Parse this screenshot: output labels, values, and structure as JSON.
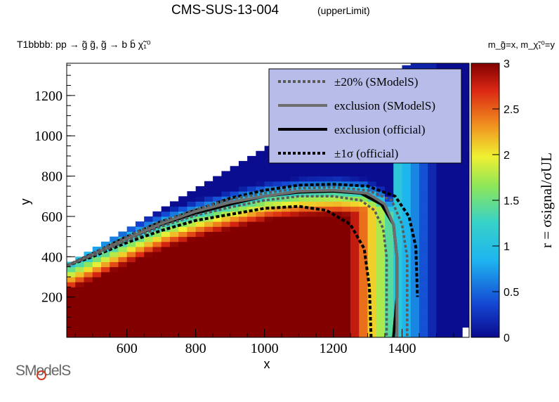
{
  "title": "CMS-SUS-13-004",
  "subtitle": "(upperLimit)",
  "process": "T1bbbb: pp → g̃ g̃, g̃ → b b̄ χ̃₁⁰",
  "mass_notation": "m_g̃=x, m_χ̃₁⁰=y",
  "logo": "SModelS",
  "colors": {
    "dashed_smodels": "#5a5a5a",
    "solid_smodels": "#6e6e6e",
    "official": "#000000",
    "legend_bg": "#b7bde8"
  },
  "chart_data": {
    "type": "heatmap",
    "xlabel": "x",
    "ylabel": "y",
    "zlabel": "r = σsignal/σUL",
    "xlim": [
      425,
      1595
    ],
    "ylim": [
      0,
      1360
    ],
    "zlim": [
      0,
      3
    ],
    "x_ticks": [
      600,
      800,
      1000,
      1200,
      1400
    ],
    "y_ticks": [
      200,
      400,
      600,
      800,
      1000,
      1200
    ],
    "z_ticks": [
      0,
      0.5,
      1,
      1.5,
      2,
      2.5,
      3
    ],
    "z_tick_labels": [
      "0",
      "0.5",
      "1",
      "1.5",
      "2",
      "2.5",
      "3"
    ],
    "legend_position": "top-right",
    "legend": [
      {
        "label": "±20% (SModelS)",
        "style": "dotted",
        "color": "#5a5a5a"
      },
      {
        "label": "exclusion (SModelS)",
        "style": "solid",
        "color": "#6e6e6e"
      },
      {
        "label": "exclusion (official)",
        "style": "solid",
        "color": "#000000"
      },
      {
        "label": "±1σ (official)",
        "style": "dotted",
        "color": "#000000"
      }
    ],
    "grid": false,
    "series": [
      {
        "name": "exclusion (official)",
        "style": "solid",
        "x": [
          425,
          500,
          600,
          700,
          800,
          900,
          1000,
          1100,
          1200,
          1280,
          1340,
          1375,
          1385,
          1385,
          1375
        ],
        "y": [
          355,
          410,
          490,
          560,
          615,
          660,
          700,
          720,
          725,
          715,
          660,
          560,
          400,
          200,
          0
        ]
      },
      {
        "name": "±1σ (official) upper",
        "style": "dotted",
        "x": [
          425,
          500,
          600,
          700,
          800,
          900,
          1000,
          1100,
          1200,
          1300,
          1380,
          1420,
          1440,
          1445
        ],
        "y": [
          355,
          415,
          500,
          575,
          630,
          690,
          730,
          755,
          760,
          750,
          700,
          600,
          450,
          200
        ]
      },
      {
        "name": "±1σ (official) lower",
        "style": "dotted",
        "x": [
          425,
          500,
          600,
          700,
          800,
          900,
          1000,
          1100,
          1180,
          1250,
          1290,
          1305,
          1310
        ],
        "y": [
          355,
          400,
          470,
          530,
          580,
          610,
          640,
          650,
          630,
          560,
          440,
          250,
          0
        ]
      },
      {
        "name": "exclusion (SModelS)",
        "style": "solid",
        "x": [
          425,
          500,
          600,
          700,
          800,
          900,
          1000,
          1100,
          1200,
          1300,
          1350,
          1375,
          1385,
          1385
        ],
        "y": [
          355,
          410,
          490,
          565,
          625,
          670,
          700,
          725,
          730,
          715,
          660,
          560,
          400,
          0
        ]
      },
      {
        "name": "+20% (SModelS)",
        "style": "dotted",
        "x": [
          425,
          500,
          600,
          700,
          800,
          900,
          1000,
          1100,
          1200,
          1300,
          1370,
          1400,
          1415,
          1415
        ],
        "y": [
          355,
          415,
          500,
          575,
          635,
          685,
          715,
          740,
          745,
          730,
          680,
          560,
          400,
          0
        ]
      },
      {
        "name": "-20% (SModelS)",
        "style": "dotted",
        "x": [
          425,
          500,
          600,
          700,
          800,
          900,
          1000,
          1100,
          1200,
          1280,
          1320,
          1345,
          1355,
          1355
        ],
        "y": [
          355,
          405,
          480,
          550,
          605,
          645,
          680,
          700,
          700,
          680,
          630,
          540,
          400,
          0
        ]
      }
    ]
  }
}
